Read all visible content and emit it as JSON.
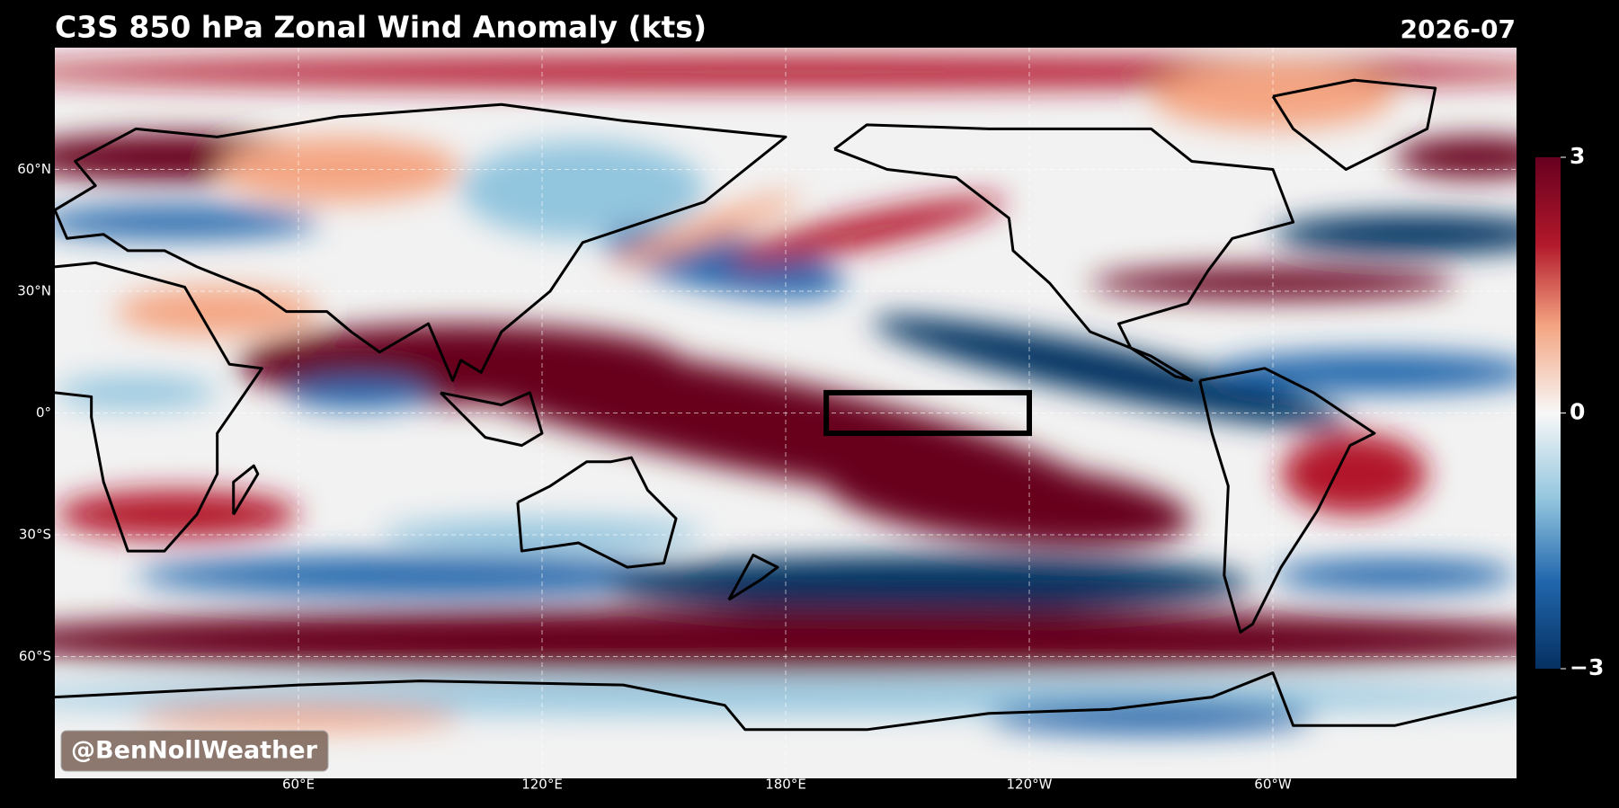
{
  "header": {
    "title": "C3S 850 hPa Zonal Wind Anomaly (kts)",
    "date": "2026-07"
  },
  "map": {
    "lat_labels": [
      "60°N",
      "30°N",
      "0°",
      "30°S",
      "60°S"
    ],
    "lon_labels": [
      "60°E",
      "120°E",
      "180°E",
      "120°W",
      "60°W"
    ]
  },
  "colorbar": {
    "lim": [
      -3,
      3
    ],
    "ticks": [
      3,
      0,
      {
        "value": -3,
        "label": "−3"
      }
    ]
  },
  "watermark": "@BenNollWeather"
}
